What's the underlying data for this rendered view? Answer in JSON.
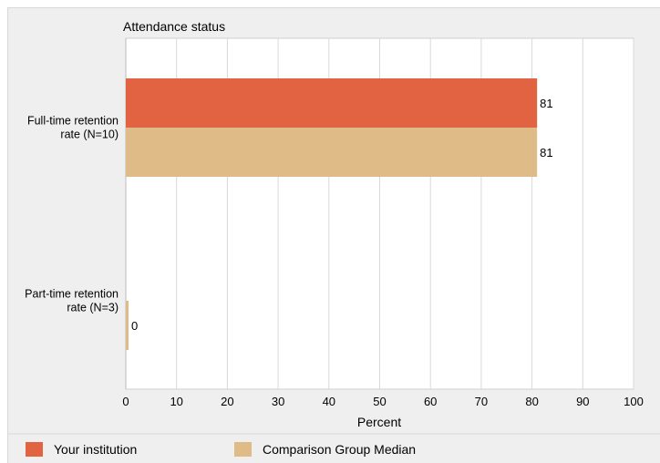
{
  "chart_data": {
    "type": "bar",
    "orientation": "horizontal",
    "title": "Attendance status",
    "xlabel": "Percent",
    "ylabel": "",
    "categories": [
      [
        "Full-time retention",
        "rate (N=10)"
      ],
      [
        "Part-time retention",
        "rate (N=3)"
      ]
    ],
    "series": [
      {
        "name": "Your institution",
        "color": "#e26341",
        "values": [
          81,
          null
        ]
      },
      {
        "name": "Comparison Group Median",
        "color": "#dfbb88",
        "values": [
          81,
          0
        ]
      }
    ],
    "data_labels": [
      [
        "81",
        null
      ],
      [
        "81",
        "0"
      ]
    ],
    "xlim": [
      0,
      100
    ],
    "xticks": [
      0,
      10,
      20,
      30,
      40,
      50,
      60,
      70,
      80,
      90,
      100
    ],
    "grid": "vertical",
    "legend": "bottom"
  }
}
